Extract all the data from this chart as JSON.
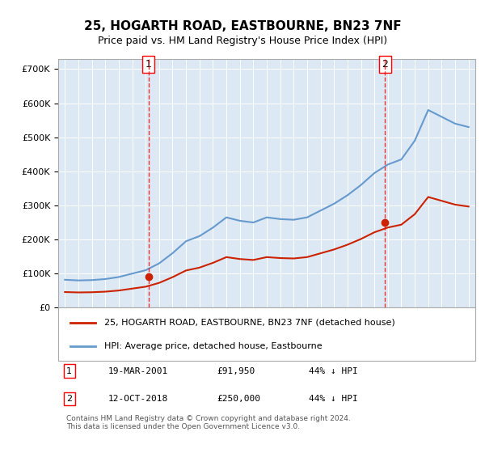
{
  "title": "25, HOGARTH ROAD, EASTBOURNE, BN23 7NF",
  "subtitle": "Price paid vs. HM Land Registry's House Price Index (HPI)",
  "background_color": "#dce9f5",
  "plot_bg_color": "#dce9f5",
  "hpi_color": "#6699cc",
  "price_color": "#cc2200",
  "vline1_x": 2001.21,
  "vline2_x": 2018.79,
  "sale1_date": "19-MAR-2001",
  "sale1_price": "£91,950",
  "sale1_pct": "44% ↓ HPI",
  "sale2_date": "12-OCT-2018",
  "sale2_price": "£250,000",
  "sale2_pct": "44% ↓ HPI",
  "legend_line1": "25, HOGARTH ROAD, EASTBOURNE, BN23 7NF (detached house)",
  "legend_line2": "HPI: Average price, detached house, Eastbourne",
  "footer": "Contains HM Land Registry data © Crown copyright and database right 2024.\nThis data is licensed under the Open Government Licence v3.0.",
  "ylim": [
    0,
    730000
  ],
  "yticks": [
    0,
    100000,
    200000,
    300000,
    400000,
    500000,
    600000,
    700000
  ],
  "xmin": 1994.5,
  "xmax": 2025.5
}
